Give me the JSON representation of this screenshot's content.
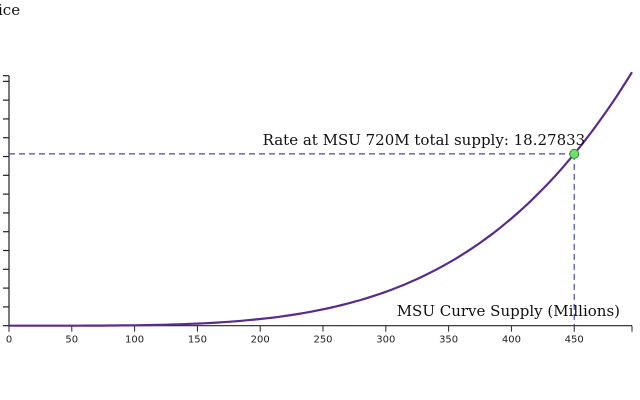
{
  "chart_data": {
    "type": "line",
    "title": "ice",
    "xlabel": "MSU Curve Supply (Millions)",
    "ylabel": "",
    "xlim": [
      0,
      496
    ],
    "ylim": [
      0,
      26.6
    ],
    "x_ticks": [
      0,
      50,
      100,
      150,
      200,
      250,
      300,
      350,
      400,
      450
    ],
    "y_tick_step": 2,
    "series": [
      {
        "x": [
          0,
          50,
          100,
          150,
          200,
          250,
          300,
          350,
          400,
          450,
          496
        ],
        "y": [
          0,
          0.0028,
          0.0446,
          0.2257,
          0.713,
          1.741,
          3.61,
          6.69,
          11.41,
          18.27833,
          26.97
        ],
        "color": "#5b2a8e"
      }
    ],
    "highlight": {
      "x": 450,
      "y": 18.27833,
      "label": "Rate at MSU 720M total supply: 18.27833",
      "marker_color": "#6ee06e",
      "guide_color": "#4a4aa0"
    },
    "grid": false
  }
}
